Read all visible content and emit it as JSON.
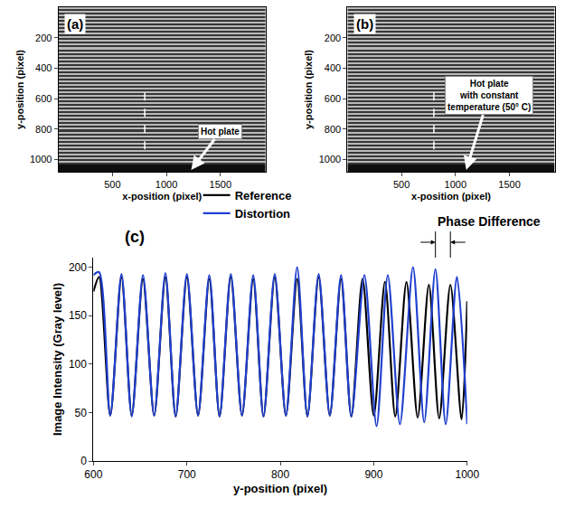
{
  "chart_data": [
    {
      "type": "image",
      "label": "(a)",
      "xlabel": "x-position (pixel)",
      "ylabel": "y-position (pixel)",
      "xlim": [
        0,
        1920
      ],
      "ylim": [
        1080,
        0
      ],
      "xticks": [
        500,
        1000,
        1500
      ],
      "yticks": [
        200,
        400,
        600,
        800,
        1000
      ],
      "grid": false,
      "image": {
        "x0": 960,
        "dx": 1920,
        "y0": 6,
        "dy": 12,
        "gray": [
          185,
          55,
          185,
          55,
          185,
          55,
          185,
          55,
          185,
          55,
          185,
          55,
          185,
          55,
          185,
          55,
          185,
          55,
          185,
          55,
          185,
          55,
          185,
          55,
          185,
          55,
          185,
          55,
          185,
          55,
          185,
          55,
          185,
          55,
          185,
          55,
          185,
          55,
          185,
          55,
          185,
          55,
          185,
          55,
          185,
          55,
          185,
          55,
          185,
          55,
          185,
          55,
          185,
          55,
          185,
          55,
          185,
          55,
          185,
          55,
          185,
          55,
          185,
          55,
          185,
          55,
          185,
          55,
          185,
          55,
          185,
          55,
          185,
          55,
          185,
          55,
          185,
          55,
          185,
          55,
          185,
          55,
          185,
          55,
          185,
          55,
          15,
          15,
          15,
          15
        ]
      },
      "zlim": [
        0,
        255
      ],
      "profile_line": {
        "x": 800,
        "y": [
          560,
          980
        ]
      },
      "annotations": [
        {
          "text": "Hot plate",
          "x": 1230,
          "y": 1068
        }
      ]
    },
    {
      "type": "image",
      "label": "(b)",
      "xlabel": "x-position (pixel)",
      "ylabel": "y-position (pixel)",
      "xlim": [
        0,
        1920
      ],
      "ylim": [
        1080,
        0
      ],
      "xticks": [
        500,
        1000,
        1500
      ],
      "yticks": [
        200,
        400,
        600,
        800,
        1000
      ],
      "grid": false,
      "image": {
        "x0": 960,
        "dx": 1920,
        "y0": 6,
        "dy": 12,
        "gray": [
          185,
          55,
          185,
          55,
          185,
          55,
          185,
          55,
          185,
          55,
          185,
          55,
          185,
          55,
          185,
          55,
          185,
          55,
          185,
          55,
          185,
          55,
          185,
          55,
          185,
          55,
          185,
          55,
          185,
          55,
          185,
          55,
          185,
          55,
          185,
          55,
          185,
          55,
          185,
          55,
          185,
          55,
          185,
          55,
          185,
          55,
          185,
          55,
          185,
          55,
          185,
          55,
          185,
          55,
          185,
          55,
          185,
          55,
          185,
          55,
          185,
          55,
          185,
          55,
          185,
          55,
          185,
          55,
          185,
          55,
          185,
          55,
          185,
          55,
          185,
          55,
          185,
          55,
          185,
          55,
          185,
          55,
          185,
          55,
          185,
          55,
          15,
          15,
          15,
          15
        ]
      },
      "zlim": [
        0,
        255
      ],
      "profile_line": {
        "x": 800,
        "y": [
          560,
          980
        ]
      },
      "annotations": [
        {
          "text": "Hot plate\nwith constant\ntemperature (50° C)",
          "x": 1100,
          "y": 1068
        }
      ]
    },
    {
      "type": "line",
      "label": "(c)",
      "xlabel": "y-position (pixel)",
      "ylabel": "Image Intensity (Gray level)",
      "xlim": [
        600,
        1000
      ],
      "ylim": [
        0,
        210
      ],
      "xticks": [
        600,
        700,
        800,
        900,
        1000
      ],
      "yticks": [
        0,
        50,
        100,
        150,
        200
      ],
      "grid": false,
      "legend": "top",
      "series": [
        {
          "name": "Reference",
          "color": "#000000",
          "x": [
            600,
            606,
            618,
            630,
            641,
            653,
            665,
            677,
            688,
            700,
            712,
            724,
            735,
            747,
            759,
            771,
            782,
            794,
            806,
            818,
            829,
            841,
            853,
            865,
            876,
            888,
            900,
            912,
            923,
            935,
            947,
            959,
            970,
            982,
            994,
            1000
          ],
          "values": [
            175,
            190,
            47,
            190,
            47,
            188,
            47,
            190,
            46,
            190,
            47,
            188,
            46,
            190,
            47,
            188,
            46,
            190,
            47,
            188,
            46,
            190,
            47,
            188,
            46,
            188,
            47,
            185,
            46,
            185,
            45,
            182,
            44,
            182,
            43,
            165
          ]
        },
        {
          "name": "Distortion",
          "color": "#2040d0",
          "x": [
            600,
            606,
            618,
            630,
            641,
            653,
            665,
            677,
            688,
            700,
            712,
            724,
            735,
            747,
            759,
            771,
            782,
            794,
            806,
            818,
            829,
            841,
            853,
            865,
            876,
            890,
            903,
            915,
            928,
            942,
            954,
            966,
            977,
            989,
            1000
          ],
          "values": [
            192,
            195,
            47,
            193,
            46,
            192,
            47,
            194,
            46,
            193,
            47,
            192,
            46,
            193,
            47,
            192,
            46,
            193,
            47,
            200,
            46,
            193,
            47,
            192,
            46,
            192,
            36,
            192,
            38,
            200,
            40,
            198,
            38,
            190,
            38
          ]
        }
      ],
      "phase_difference": {
        "text": "Phase Difference",
        "between": [
          966,
          982
        ]
      }
    }
  ]
}
